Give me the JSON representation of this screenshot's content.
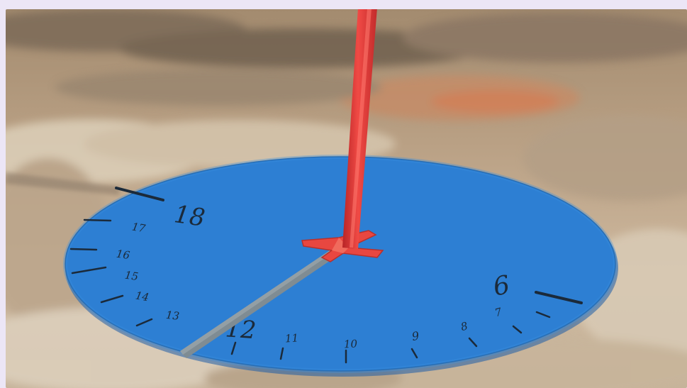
{
  "scene": {
    "background_color": "#ece6f6",
    "ground_colors": [
      "#b49a7c",
      "#8e7a66",
      "#d8c7b0",
      "#c38f6c"
    ],
    "dial_color": "#2d7fd3",
    "gnomon_color": "#e0393a",
    "shadow_color": "#7f8c93"
  },
  "sundial": {
    "hour_labels": [
      "6",
      "7",
      "8",
      "9",
      "10",
      "11",
      "12",
      "13",
      "14",
      "15",
      "16",
      "17",
      "18"
    ],
    "shadow_hour": "12"
  }
}
